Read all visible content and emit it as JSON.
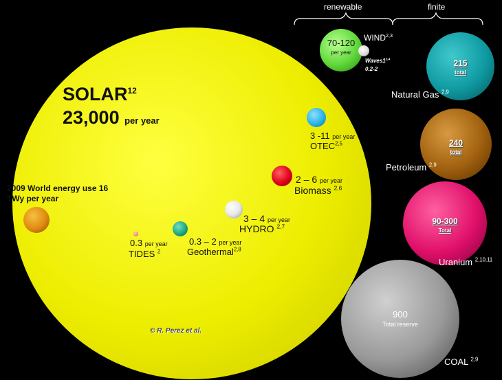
{
  "header": {
    "renewable": "renewable",
    "finite": "finite"
  },
  "solar": {
    "name": "SOLAR",
    "ref": "12",
    "value": "23,000",
    "unit": "per year"
  },
  "world_use": {
    "line1": "2009 World energy use 16",
    "line2": "TWy  per year"
  },
  "wind": {
    "value": "70-120",
    "unit": "per year",
    "name": "WIND",
    "ref": "2,3"
  },
  "waves": {
    "name": "Waves1",
    "ref": "2,4",
    "value": "0.2-2"
  },
  "otec": {
    "value": "3 -11",
    "unit": "per year",
    "name": "OTEC",
    "ref": "2,5"
  },
  "biomass": {
    "value": "2 – 6",
    "unit": "per year",
    "name": "Biomass",
    "ref": "2,6"
  },
  "hydro": {
    "value": "3 – 4",
    "unit": "per year",
    "name": "HYDRO",
    "ref": "2,7"
  },
  "geothermal": {
    "value": "0.3 – 2",
    "unit": "per year",
    "name": "Geothermal",
    "ref": "2,8"
  },
  "tides": {
    "value": "0.3",
    "unit": "per year",
    "name": "TIDES",
    "ref": "2"
  },
  "natural_gas": {
    "value": "215",
    "sub": "total",
    "name": "Natural Gas",
    "ref": "2,9"
  },
  "petroleum": {
    "value": "240",
    "sub": "total",
    "name": "Petroleum",
    "ref": "2,9"
  },
  "uranium": {
    "value": "90-300",
    "sub": "Total",
    "name": "Uranium",
    "ref": "2,10,11"
  },
  "coal": {
    "value": "900",
    "sub": "Total reserve",
    "name": "COAL",
    "ref": "2,9"
  },
  "credit": "© R. Perez et al.",
  "colors": {
    "solar": "#f2f200",
    "wind": "#5fd83a",
    "otec": "#29b4e8",
    "biomass": "#e0001a",
    "geothermal": "#1ea882",
    "natural_gas": "#0f9aa2",
    "petroleum": "#a0600e",
    "uranium": "#e0106a",
    "coal": "#9a9a9a",
    "world_use": "#e08a10"
  }
}
